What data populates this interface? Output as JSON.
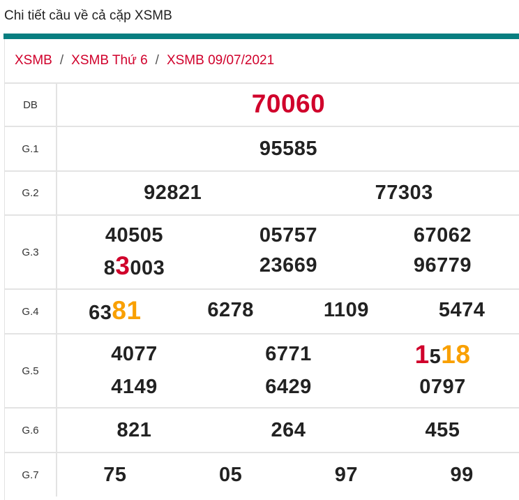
{
  "page_title": "Chi tiết cầu về cả cặp XSMB",
  "breadcrumb": [
    "XSMB",
    "XSMB Thứ 6",
    "XSMB 09/07/2021"
  ],
  "breadcrumb_separator": "/",
  "colors": {
    "accent": "#087e80",
    "red": "#d0002b",
    "orange": "#f9a000"
  },
  "rows": [
    {
      "label": "DB",
      "cols": 1,
      "numbers": [
        [
          {
            "t": "70060",
            "c": "red",
            "big": true
          }
        ]
      ]
    },
    {
      "label": "G.1",
      "cols": 1,
      "numbers": [
        [
          {
            "t": "95585"
          }
        ]
      ]
    },
    {
      "label": "G.2",
      "cols": 2,
      "numbers": [
        [
          {
            "t": "92821"
          }
        ],
        [
          {
            "t": "77303"
          }
        ]
      ]
    },
    {
      "label": "G.3",
      "cols": 3,
      "numbers": [
        [
          {
            "t": "40505"
          }
        ],
        [
          {
            "t": "05757"
          }
        ],
        [
          {
            "t": "67062"
          }
        ],
        [
          {
            "t": "8"
          },
          {
            "t": "3",
            "c": "red",
            "big": true
          },
          {
            "t": "003"
          }
        ],
        [
          {
            "t": "23669"
          }
        ],
        [
          {
            "t": "96779"
          }
        ]
      ]
    },
    {
      "label": "G.4",
      "cols": 4,
      "numbers": [
        [
          {
            "t": "63"
          },
          {
            "t": "81",
            "c": "orange",
            "big": true
          }
        ],
        [
          {
            "t": "6278"
          }
        ],
        [
          {
            "t": "1109"
          }
        ],
        [
          {
            "t": "5474"
          }
        ]
      ]
    },
    {
      "label": "G.5",
      "cols": 3,
      "numbers": [
        [
          {
            "t": "4077"
          }
        ],
        [
          {
            "t": "6771"
          }
        ],
        [
          {
            "t": "1",
            "c": "red",
            "big": true
          },
          {
            "t": "5"
          },
          {
            "t": "18",
            "c": "orange",
            "big": true
          }
        ],
        [
          {
            "t": "4149"
          }
        ],
        [
          {
            "t": "6429"
          }
        ],
        [
          {
            "t": "0797"
          }
        ]
      ]
    },
    {
      "label": "G.6",
      "cols": 3,
      "numbers": [
        [
          {
            "t": "821"
          }
        ],
        [
          {
            "t": "264"
          }
        ],
        [
          {
            "t": "455"
          }
        ]
      ]
    },
    {
      "label": "G.7",
      "cols": 4,
      "numbers": [
        [
          {
            "t": "75"
          }
        ],
        [
          {
            "t": "05"
          }
        ],
        [
          {
            "t": "97"
          }
        ],
        [
          {
            "t": "99"
          }
        ]
      ]
    }
  ]
}
